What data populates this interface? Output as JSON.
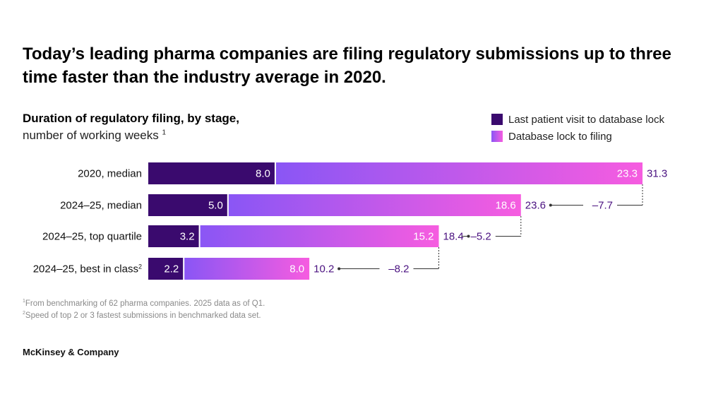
{
  "title": "Today’s leading  pharma companies are filing regulatory submissions up to three time faster than the  industry average in 2020.",
  "subtitle_bold": "Duration of regulatory filing, by stage,",
  "subtitle_units": "number of working weeks",
  "subtitle_units_sup": "1",
  "legend": [
    {
      "label": "Last patient visit to database lock",
      "color": "#3a0a6e"
    },
    {
      "label": "Database lock to filing",
      "color": "gradient #8a56f5 to #f65ce0"
    }
  ],
  "chart_data": {
    "type": "bar",
    "orientation": "horizontal",
    "stacked": true,
    "categories": [
      "2020, median",
      "2024–25, median",
      "2024–25, top quartile",
      "2024–25, best in class"
    ],
    "category_sups": [
      "",
      "",
      "",
      "2"
    ],
    "series": [
      {
        "name": "Last patient visit to database lock",
        "values": [
          8.0,
          5.0,
          3.2,
          2.2
        ],
        "color": "#3a0a6e"
      },
      {
        "name": "Database lock to filing",
        "values": [
          23.3,
          18.6,
          15.2,
          8.0
        ],
        "color": "#b05af0"
      }
    ],
    "value_labels": [
      [
        "8.0",
        "23.3"
      ],
      [
        "5.0",
        "18.6"
      ],
      [
        "3.2",
        "15.2"
      ],
      [
        "2.2",
        "8.0"
      ]
    ],
    "totals": [
      "31.3",
      "23.6",
      "18.4",
      "10.2"
    ],
    "differences": [
      "",
      "–7.7",
      "–5.2",
      "–8.2"
    ],
    "xlim": [
      0,
      31.3
    ],
    "grid": false
  },
  "footnotes": [
    {
      "sup": "1",
      "text": "From benchmarking of 62 pharma companies. 2025 data as of Q1."
    },
    {
      "sup": "2",
      "text": "Speed of top 2 or 3 fastest submissions in benchmarked data set."
    }
  ],
  "brand": "McKinsey & Company"
}
